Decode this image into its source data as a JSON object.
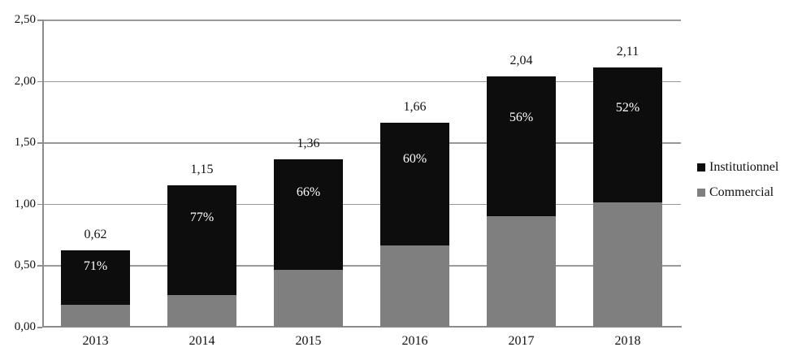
{
  "chart_data": {
    "type": "bar",
    "stacked": true,
    "title": "",
    "xlabel": "",
    "ylabel": "",
    "categories": [
      "2013",
      "2014",
      "2015",
      "2016",
      "2017",
      "2018"
    ],
    "series": [
      {
        "name": "Commercial",
        "color": "#7f7f7f",
        "values": [
          0.18,
          0.26,
          0.46,
          0.66,
          0.9,
          1.01
        ]
      },
      {
        "name": "Institutionnel",
        "color": "#0d0d0d",
        "values": [
          0.44,
          0.89,
          0.9,
          1.0,
          1.14,
          1.1
        ]
      }
    ],
    "totals": [
      0.62,
      1.15,
      1.36,
      1.66,
      2.04,
      2.11
    ],
    "total_labels": [
      "0,62",
      "1,15",
      "1,36",
      "1,66",
      "2,04",
      "2,11"
    ],
    "pct_labels": [
      "71%",
      "77%",
      "66%",
      "60%",
      "56%",
      "52%"
    ],
    "y_tick_labels": [
      "2,50",
      "2,00",
      "1,50",
      "1,00",
      "0,50",
      "0,00"
    ],
    "ylim": [
      0,
      2.5
    ],
    "grid": true,
    "grid_color": "#999999",
    "axis_color": "#8c8c8c",
    "pct_text_color": "#ffffff",
    "legend_position": "right",
    "legend": [
      {
        "label": "Institutionnel",
        "color": "#0d0d0d"
      },
      {
        "label": "Commercial",
        "color": "#7f7f7f"
      }
    ]
  }
}
